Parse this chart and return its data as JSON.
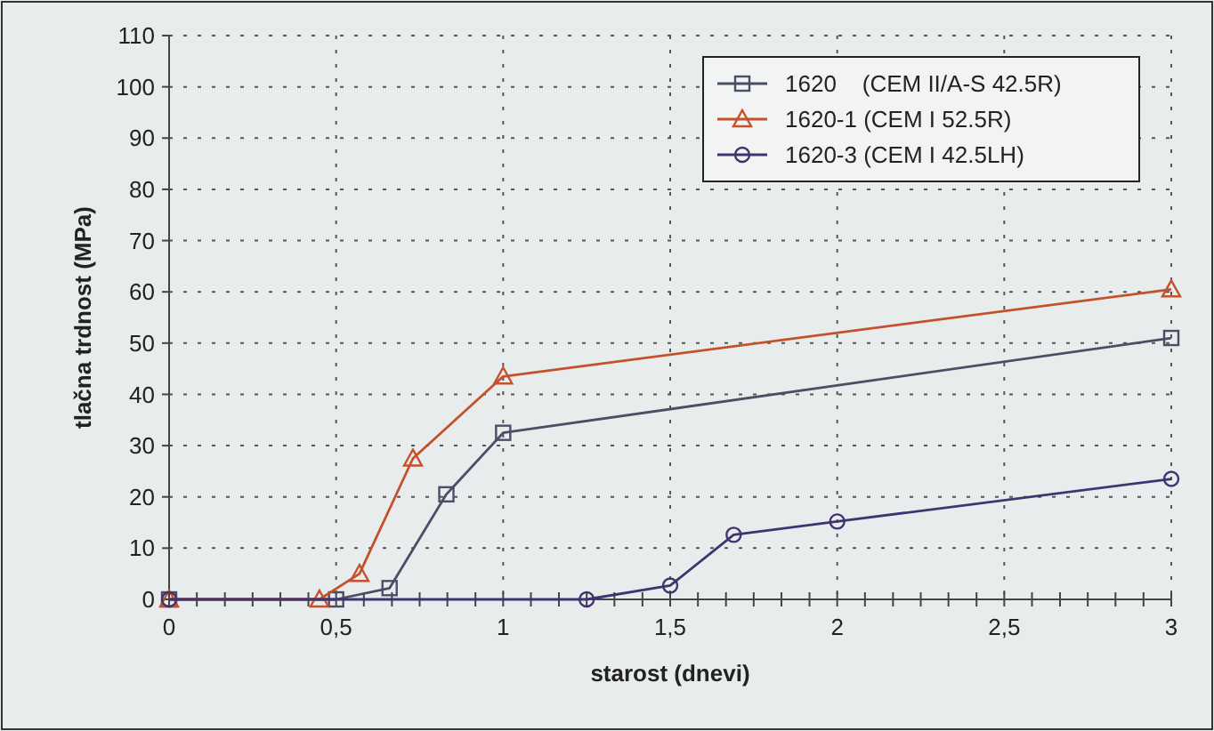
{
  "chart_data": {
    "type": "line",
    "xlabel": "starost (dnevi)",
    "ylabel": "tlačna trdnost (MPa)",
    "xlim": [
      0,
      3
    ],
    "ylim": [
      0,
      110
    ],
    "xticks": [
      0,
      {
        "value": 0.083,
        "label": null
      },
      {
        "value": 0.167,
        "label": null
      },
      {
        "value": 0.25,
        "label": null
      },
      {
        "value": 0.333,
        "label": null
      },
      {
        "value": 0.417,
        "label": null
      },
      {
        "value": 0.5,
        "label": "0,5"
      },
      {
        "value": 0.583,
        "label": null
      },
      {
        "value": 0.667,
        "label": null
      },
      {
        "value": 0.75,
        "label": null
      },
      {
        "value": 0.833,
        "label": null
      },
      {
        "value": 0.917,
        "label": null
      },
      1,
      {
        "value": 1.083,
        "label": null
      },
      {
        "value": 1.167,
        "label": null
      },
      {
        "value": 1.25,
        "label": null
      },
      {
        "value": 1.333,
        "label": null
      },
      {
        "value": 1.417,
        "label": null
      },
      {
        "value": 1.5,
        "label": "1,5"
      },
      {
        "value": 1.583,
        "label": null
      },
      {
        "value": 1.667,
        "label": null
      },
      {
        "value": 1.75,
        "label": null
      },
      {
        "value": 1.833,
        "label": null
      },
      {
        "value": 1.917,
        "label": null
      },
      2,
      {
        "value": 2.083,
        "label": null
      },
      {
        "value": 2.167,
        "label": null
      },
      {
        "value": 2.25,
        "label": null
      },
      {
        "value": 2.333,
        "label": null
      },
      {
        "value": 2.417,
        "label": null
      },
      {
        "value": 2.5,
        "label": "2,5"
      },
      {
        "value": 2.583,
        "label": null
      },
      {
        "value": 2.667,
        "label": null
      },
      {
        "value": 2.75,
        "label": null
      },
      {
        "value": 2.833,
        "label": null
      },
      {
        "value": 2.917,
        "label": null
      },
      3
    ],
    "yticks": [
      0,
      10,
      20,
      30,
      40,
      50,
      60,
      70,
      80,
      90,
      100,
      110
    ],
    "grid": true,
    "legend": "top right",
    "line_style": "solid",
    "series": [
      {
        "name": "1620    (CEM II/A-S 42.5R)",
        "color": "#4d4d66",
        "marker": "square",
        "x": [
          0,
          0.5,
          0.66,
          0.83,
          1,
          3
        ],
        "values": [
          0,
          0,
          2.2,
          20.5,
          32.5,
          51
        ]
      },
      {
        "name": "1620-1 (CEM I 52.5R)",
        "color": "#c4502c",
        "marker": "triangle",
        "x": [
          0,
          0.45,
          0.57,
          0.73,
          1,
          3
        ],
        "values": [
          0,
          0,
          5,
          27.5,
          43.5,
          60.5
        ]
      },
      {
        "name": "1620-3 (CEM I 42.5LH)",
        "color": "#3f3470",
        "marker": "circle",
        "x": [
          0,
          1.25,
          1.5,
          1.69,
          2,
          3
        ],
        "values": [
          0,
          0,
          2.7,
          12.6,
          15.2,
          23.5
        ]
      }
    ]
  }
}
